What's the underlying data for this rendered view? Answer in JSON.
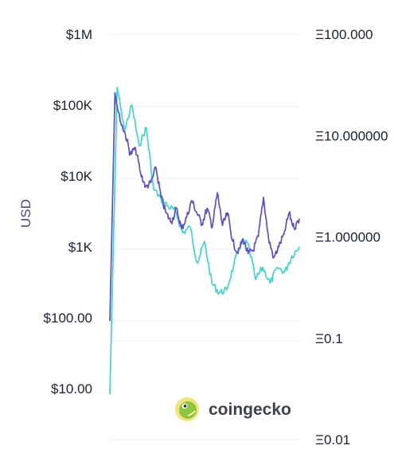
{
  "chart_data": {
    "type": "line",
    "ylabel": "USD",
    "left_axis": {
      "scale": "log",
      "ticks": [
        "$1M",
        "$100K",
        "$10K",
        "$1K",
        "$100.00",
        "$10.00"
      ],
      "tick_values": [
        1000000,
        100000,
        10000,
        1000,
        100,
        10
      ]
    },
    "right_axis": {
      "scale": "log",
      "ticks": [
        "Ξ100.000",
        "Ξ10.000000",
        "Ξ1.000000",
        "Ξ0.1",
        "Ξ0.01"
      ],
      "tick_values": [
        100,
        10,
        1,
        0.1,
        0.01
      ]
    },
    "grid": true,
    "series": [
      {
        "axis": "usd",
        "color": "#5b4fcf",
        "values": [
          90,
          150000,
          60000,
          40000,
          20000,
          25000,
          11000,
          7000,
          8000,
          13000,
          5000,
          3000,
          2200,
          3500,
          1800,
          2600,
          4500,
          3000,
          2100,
          3500,
          1900,
          5800,
          2000,
          3000,
          1200,
          800,
          1300,
          800,
          900,
          1400,
          5000,
          1300,
          700,
          1000,
          1500,
          3000,
          1800,
          2500
        ]
      },
      {
        "axis": "eth",
        "color": "#3cd6cf",
        "values": [
          0.028,
          30,
          11,
          20,
          8,
          12,
          3,
          2.4,
          2,
          1.8,
          1.1,
          1.25,
          0.55,
          0.9,
          0.35,
          0.28,
          0.3,
          0.52,
          0.9,
          0.85,
          0.38,
          0.5,
          0.35,
          0.5,
          0.45,
          0.65,
          0.8
        ]
      }
    ]
  },
  "branding": {
    "logo_text": "coingecko",
    "logo_icon": "gecko-icon"
  }
}
